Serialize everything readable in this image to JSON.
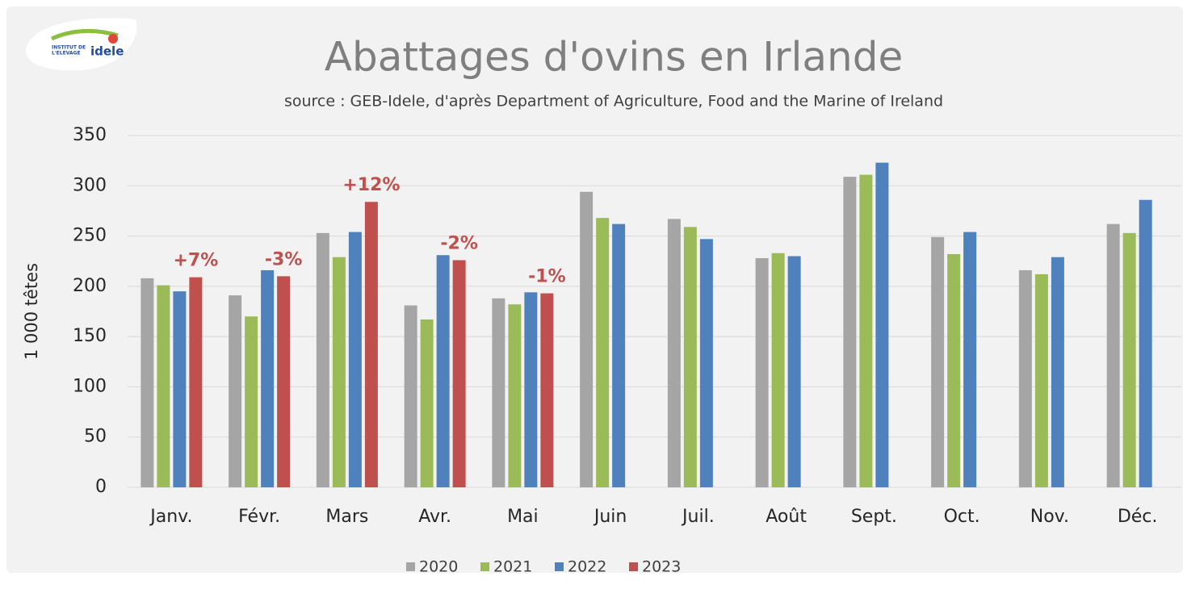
{
  "logo": {
    "line1": "INSTITUT DE",
    "line2": "L'ELEVAGE",
    "brand": "idele"
  },
  "chart_data": {
    "type": "bar",
    "title": "Abattages d'ovins en Irlande",
    "subtitle": "source : GEB-Idele, d'après Department of Agriculture, Food and the Marine of Ireland",
    "y_label": "1 000 têtes",
    "categories": [
      "Janv.",
      "Févr.",
      "Mars",
      "Avr.",
      "Mai",
      "Juin",
      "Juil.",
      "Août",
      "Sept.",
      "Oct.",
      "Nov.",
      "Déc."
    ],
    "series": [
      {
        "name": "2020",
        "color": "#a5a5a5",
        "values": [
          208,
          191,
          253,
          181,
          188,
          294,
          267,
          228,
          309,
          249,
          216,
          262
        ]
      },
      {
        "name": "2021",
        "color": "#9bbb59",
        "values": [
          201,
          170,
          229,
          167,
          182,
          268,
          259,
          233,
          311,
          232,
          212,
          253
        ]
      },
      {
        "name": "2022",
        "color": "#4f81bd",
        "values": [
          195,
          216,
          254,
          231,
          194,
          262,
          247,
          230,
          323,
          254,
          229,
          286
        ]
      },
      {
        "name": "2023",
        "color": "#c0504d",
        "values": [
          209,
          210,
          284,
          226,
          193,
          null,
          null,
          null,
          null,
          null,
          null,
          null
        ]
      }
    ],
    "annotations": [
      {
        "category": "Janv.",
        "text": "+7%"
      },
      {
        "category": "Févr.",
        "text": "-3%"
      },
      {
        "category": "Mars",
        "text": "+12%"
      },
      {
        "category": "Avr.",
        "text": "-2%"
      },
      {
        "category": "Mai",
        "text": "-1%"
      }
    ],
    "annotation_color": "#c0504d",
    "ylim": [
      0,
      350
    ],
    "yticks": [
      0,
      50,
      100,
      150,
      200,
      250,
      300,
      350
    ],
    "grid": true,
    "legend": "bottom"
  }
}
